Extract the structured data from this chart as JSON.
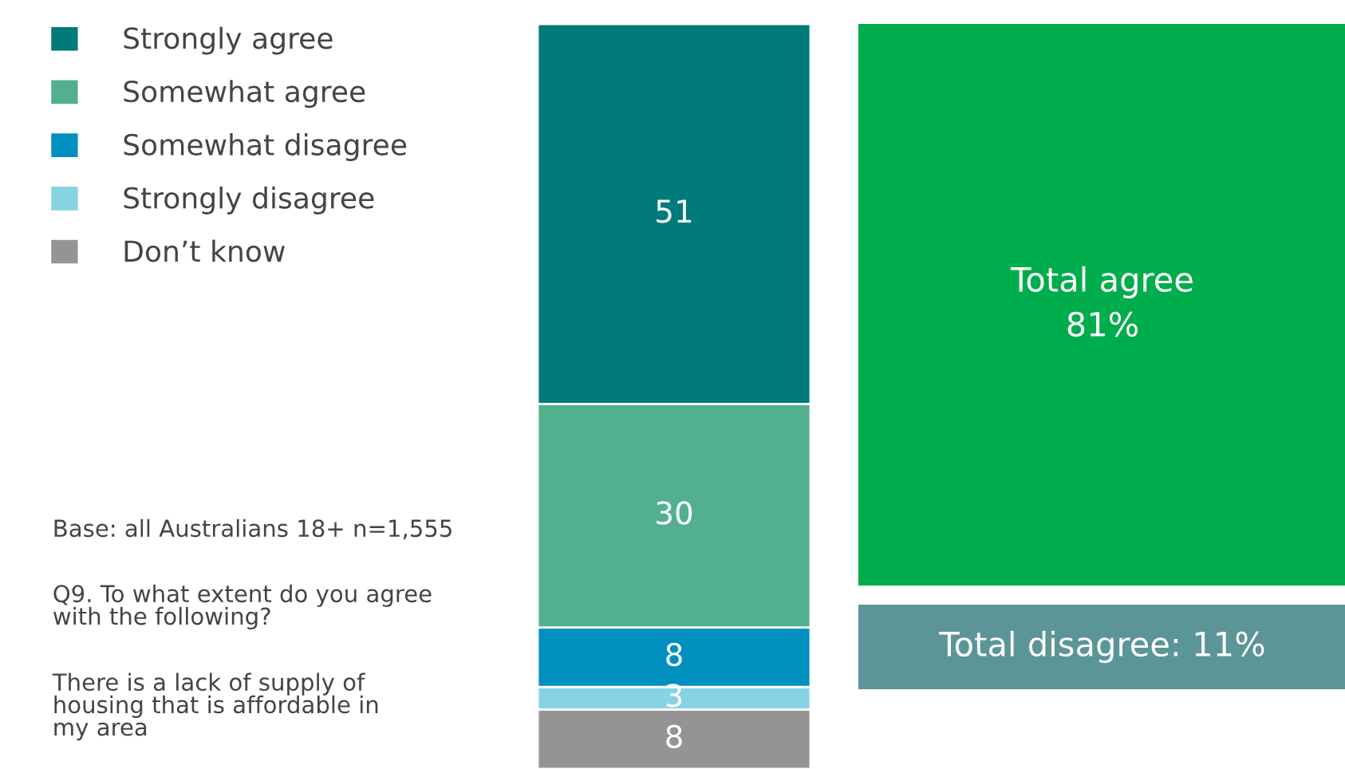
{
  "chart_data": [
    {
      "type": "bar",
      "stacked": true,
      "categories": [
        null
      ],
      "data_labels": true,
      "legend": "left",
      "series": [
        {
          "name": "Don’t know",
          "color": "#949494",
          "values": [
            8
          ]
        },
        {
          "name": "Strongly disagree",
          "color": "#85d3e3",
          "values": [
            3
          ]
        },
        {
          "name": "Somewhat disagree",
          "color": "#0090c0",
          "values": [
            8
          ]
        },
        {
          "name": "Somewhat agree",
          "color": "#52b08e",
          "values": [
            30
          ]
        },
        {
          "name": "Strongly agree",
          "color": "#007a7a",
          "values": [
            51
          ]
        }
      ],
      "annotations": [
        "Base: all Australians 18+ n=1,555",
        "Q9. To what extent do you agree\nwith the following?",
        "There is a lack of supply of\nhousing that is affordable in\nmy area"
      ]
    },
    {
      "type": "other",
      "annotations": [
        "Total agree\n81%",
        "Total disagree: 11%"
      ],
      "colors": [
        "#00ad4c",
        "#5b9598"
      ]
    }
  ]
}
